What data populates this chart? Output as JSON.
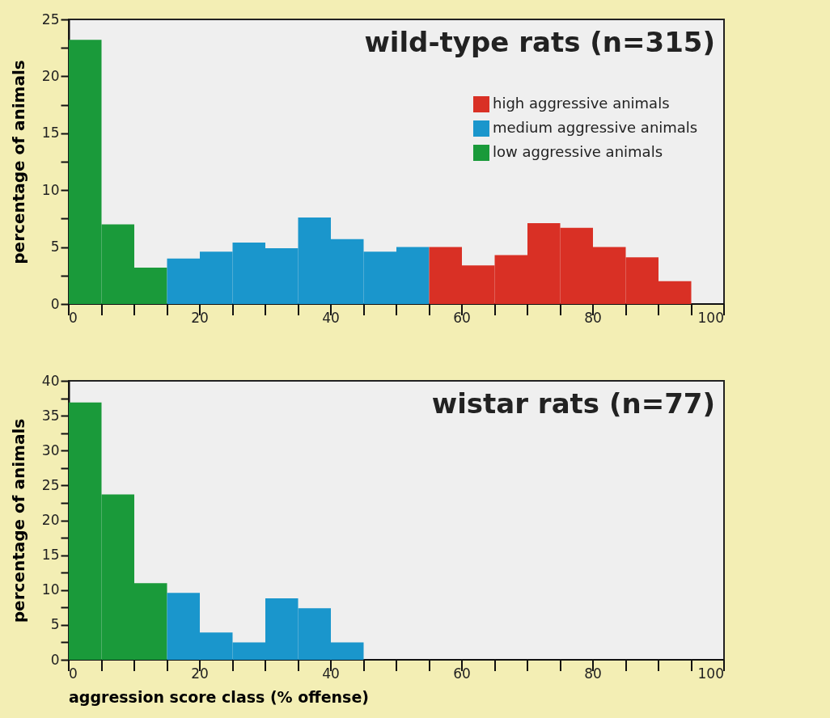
{
  "chart_data": [
    {
      "type": "histogram",
      "title": "wild-type rats (n=315)",
      "ylabel": "percentage of animals",
      "bins": [
        0,
        5,
        10,
        15,
        20,
        25,
        30,
        35,
        40,
        45,
        50,
        55,
        60,
        65,
        70,
        75,
        80,
        85,
        90,
        95
      ],
      "series": [
        {
          "name": "low aggressive animals",
          "color": "#1a9a3a",
          "values": [
            23.2,
            7.0,
            3.2,
            null,
            null,
            null,
            null,
            null,
            null,
            null,
            null,
            null,
            null,
            null,
            null,
            null,
            null,
            null,
            null
          ]
        },
        {
          "name": "medium aggressive animals",
          "color": "#1a96cc",
          "values": [
            null,
            null,
            null,
            4.0,
            4.6,
            5.4,
            4.9,
            7.6,
            5.7,
            4.6,
            5.0,
            null,
            null,
            null,
            null,
            null,
            null,
            null,
            null
          ]
        },
        {
          "name": "high aggressive animals",
          "color": "#d93025",
          "values": [
            null,
            null,
            null,
            null,
            null,
            null,
            null,
            null,
            null,
            null,
            null,
            5.0,
            3.4,
            4.3,
            7.1,
            6.7,
            5.0,
            4.1,
            2.0
          ]
        }
      ],
      "xlim": [
        0,
        100
      ],
      "xticks": [
        0,
        {
          "value": 5,
          "label": null
        },
        {
          "value": 10,
          "label": null
        },
        {
          "value": 15,
          "label": null
        },
        20,
        {
          "value": 25,
          "label": null
        },
        {
          "value": 30,
          "label": null
        },
        {
          "value": 35,
          "label": null
        },
        40,
        {
          "value": 45,
          "label": null
        },
        {
          "value": 50,
          "label": null
        },
        {
          "value": 55,
          "label": null
        },
        60,
        {
          "value": 65,
          "label": null
        },
        {
          "value": 70,
          "label": null
        },
        {
          "value": 75,
          "label": null
        },
        80,
        {
          "value": 85,
          "label": null
        },
        {
          "value": 90,
          "label": null
        },
        {
          "value": 95,
          "label": null
        },
        100
      ],
      "ylim": [
        0,
        25
      ],
      "yticks": [
        0,
        {
          "value": 2.5,
          "label": null
        },
        5,
        {
          "value": 7.5,
          "label": null
        },
        10,
        {
          "value": 12.5,
          "label": null
        },
        15,
        {
          "value": 17.5,
          "label": null
        },
        20,
        {
          "value": 22.5,
          "label": null
        },
        25
      ],
      "legend": "top right",
      "grid": false
    },
    {
      "type": "histogram",
      "title": "wistar rats (n=77)",
      "ylabel": "percentage of animals",
      "xlabel": "aggression score class (% offense)",
      "bins": [
        0,
        5,
        10,
        15,
        20,
        25,
        30,
        35,
        40,
        45
      ],
      "series": [
        {
          "color": "#1a9a3a",
          "values": [
            36.9,
            23.7,
            11.0,
            null,
            null,
            null,
            null,
            null,
            null
          ]
        },
        {
          "color": "#1a96cc",
          "values": [
            null,
            null,
            null,
            9.6,
            3.9,
            2.5,
            8.8,
            7.4,
            2.5
          ]
        }
      ],
      "xlim": [
        0,
        100
      ],
      "xticks": [
        0,
        {
          "value": 5,
          "label": null
        },
        {
          "value": 10,
          "label": null
        },
        {
          "value": 15,
          "label": null
        },
        20,
        {
          "value": 25,
          "label": null
        },
        {
          "value": 30,
          "label": null
        },
        {
          "value": 35,
          "label": null
        },
        40,
        {
          "value": 45,
          "label": null
        },
        {
          "value": 50,
          "label": null
        },
        {
          "value": 55,
          "label": null
        },
        60,
        {
          "value": 65,
          "label": null
        },
        {
          "value": 70,
          "label": null
        },
        {
          "value": 75,
          "label": null
        },
        80,
        {
          "value": 85,
          "label": null
        },
        {
          "value": 90,
          "label": null
        },
        {
          "value": 95,
          "label": null
        },
        100
      ],
      "ylim": [
        0,
        40
      ],
      "yticks": [
        0,
        {
          "value": 2.5,
          "label": null
        },
        5,
        {
          "value": 7.5,
          "label": null
        },
        10,
        {
          "value": 12.5,
          "label": null
        },
        15,
        {
          "value": 17.5,
          "label": null
        },
        20,
        {
          "value": 22.5,
          "label": null
        },
        25,
        {
          "value": 27.5,
          "label": null
        },
        30,
        {
          "value": 32.5,
          "label": null
        },
        35,
        {
          "value": 37.5,
          "label": null
        },
        40
      ],
      "grid": false
    }
  ]
}
